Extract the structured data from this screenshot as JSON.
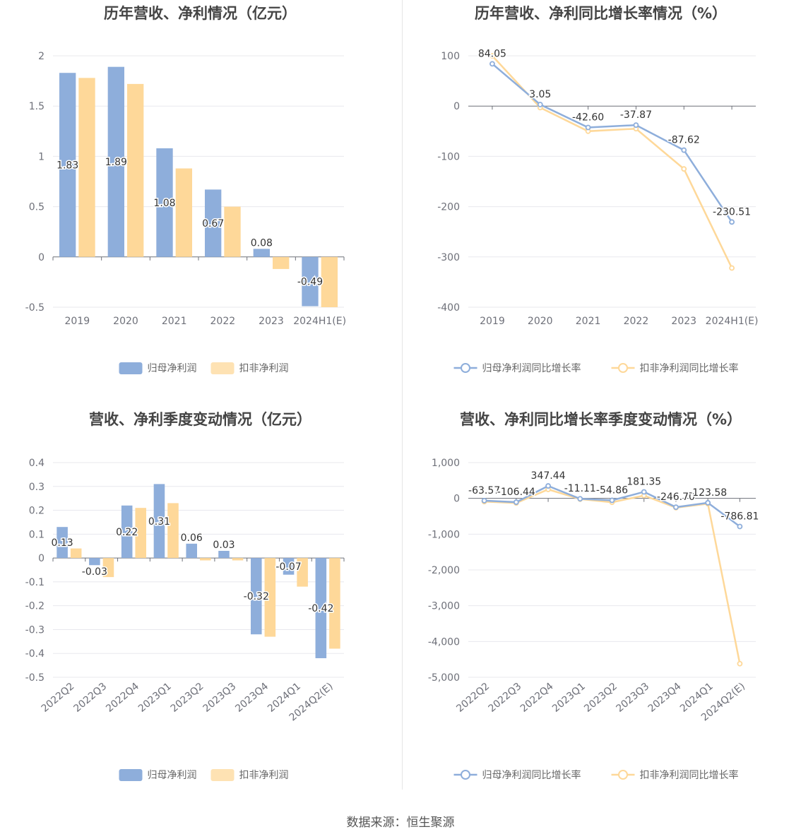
{
  "source": "数据来源：恒生聚源",
  "colors": {
    "net_profit": "#8eaedb",
    "deducted_profit": "#fed899",
    "grid": "#e8e8ee",
    "axis": "#6e7079"
  },
  "chart_data": [
    {
      "id": "p0",
      "type": "bar",
      "title": "历年营收、净利情况（亿元）",
      "categories": [
        "2019",
        "2020",
        "2021",
        "2022",
        "2023",
        "2024H1(E)"
      ],
      "series": [
        {
          "name": "归母净利润",
          "values": [
            1.83,
            1.89,
            1.08,
            0.67,
            0.08,
            -0.49
          ],
          "labels": [
            "1.83",
            "1.89",
            "1.08",
            "0.67",
            "0.08",
            "-0.49"
          ]
        },
        {
          "name": "扣非净利润",
          "values": [
            1.78,
            1.72,
            0.88,
            0.5,
            -0.12,
            -0.5
          ]
        }
      ],
      "ylim": [
        -0.5,
        2
      ],
      "yticks": [
        -0.5,
        0,
        0.5,
        1,
        1.5,
        2
      ],
      "ytick_labels": [
        "-0.5",
        "0",
        "0.5",
        "1",
        "1.5",
        "2"
      ],
      "legend_position": "bottom",
      "grid": true
    },
    {
      "id": "p1",
      "type": "line",
      "title": "历年营收、净利同比增长率情况（%）",
      "categories": [
        "2019",
        "2020",
        "2021",
        "2022",
        "2023",
        "2024H1(E)"
      ],
      "series": [
        {
          "name": "归母净利润同比增长率",
          "values": [
            84.05,
            3.05,
            -42.6,
            -37.87,
            -87.62,
            -230.51
          ],
          "labels": [
            "84.05",
            "3.05",
            "-42.60",
            "-37.87",
            "-87.62",
            "-230.51"
          ]
        },
        {
          "name": "扣非净利润同比增长率",
          "values": [
            100,
            -3,
            -50,
            -45,
            -125,
            -322
          ]
        }
      ],
      "ylim": [
        -400,
        100
      ],
      "yticks": [
        -400,
        -300,
        -200,
        -100,
        0,
        100
      ],
      "ytick_labels": [
        "-400",
        "-300",
        "-200",
        "-100",
        "0",
        "100"
      ],
      "legend_position": "bottom",
      "grid": true
    },
    {
      "id": "p2",
      "type": "bar",
      "title": "营收、净利季度变动情况（亿元）",
      "categories": [
        "2022Q2",
        "2022Q3",
        "2022Q4",
        "2023Q1",
        "2023Q2",
        "2023Q3",
        "2023Q4",
        "2024Q1",
        "2024Q2(E)"
      ],
      "series": [
        {
          "name": "归母净利润",
          "values": [
            0.13,
            -0.03,
            0.22,
            0.31,
            0.06,
            0.03,
            -0.32,
            -0.07,
            -0.42
          ],
          "labels": [
            "0.13",
            "-0.03",
            "0.22",
            "0.31",
            "0.06",
            "0.03",
            "-0.32",
            "-0.07",
            "-0.42"
          ]
        },
        {
          "name": "扣非净利润",
          "values": [
            0.04,
            -0.08,
            0.21,
            0.23,
            -0.01,
            -0.01,
            -0.33,
            -0.12,
            -0.38
          ]
        }
      ],
      "ylim": [
        -0.5,
        0.4
      ],
      "yticks": [
        -0.5,
        -0.4,
        -0.3,
        -0.2,
        -0.1,
        0,
        0.1,
        0.2,
        0.3,
        0.4
      ],
      "ytick_labels": [
        "-0.5",
        "-0.4",
        "-0.3",
        "-0.2",
        "-0.1",
        "0",
        "0.1",
        "0.2",
        "0.3",
        "0.4"
      ],
      "legend_position": "bottom",
      "grid": true
    },
    {
      "id": "p3",
      "type": "line",
      "title": "营收、净利同比增长率季度变动情况（%）",
      "categories": [
        "2022Q2",
        "2022Q3",
        "2022Q4",
        "2023Q1",
        "2023Q2",
        "2023Q3",
        "2023Q4",
        "2024Q1",
        "2024Q2(E)"
      ],
      "series": [
        {
          "name": "归母净利润同比增长率",
          "values": [
            -63.57,
            -106.44,
            347.44,
            -11.11,
            -54.86,
            181.35,
            -246.7,
            -123.58,
            -786.81
          ],
          "labels": [
            "-63.57",
            "-106.44",
            "347.44",
            "-11.11",
            "-54.86",
            "181.35",
            "-246.70",
            "-123.58",
            "-786.81"
          ]
        },
        {
          "name": "扣非净利润同比增长率",
          "values": [
            -90,
            -130,
            250,
            -20,
            -110,
            80,
            -260,
            -150,
            -4620
          ]
        }
      ],
      "ylim": [
        -5000,
        1000
      ],
      "yticks": [
        -5000,
        -4000,
        -3000,
        -2000,
        -1000,
        0,
        1000
      ],
      "ytick_labels": [
        "-5,000",
        "-4,000",
        "-3,000",
        "-2,000",
        "-1,000",
        "0",
        "1,000"
      ],
      "legend_position": "bottom",
      "grid": true
    }
  ]
}
